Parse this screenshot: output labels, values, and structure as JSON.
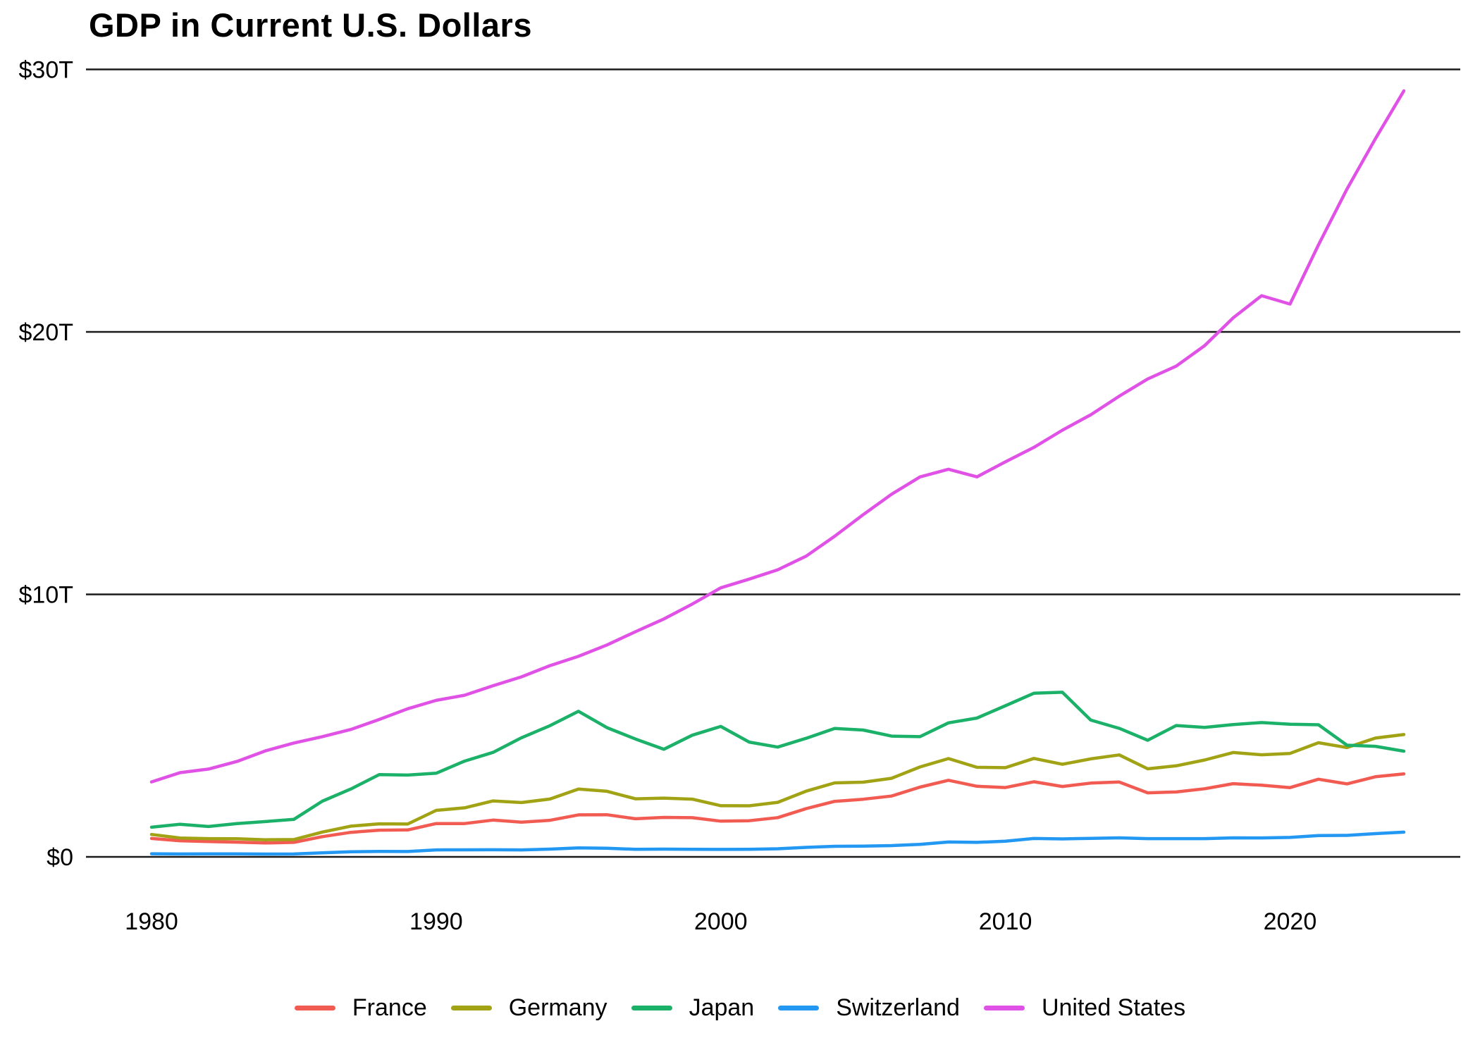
{
  "chart_data": {
    "type": "line",
    "title": "GDP in Current U.S. Dollars",
    "y_unit": "trillions of current U.S. dollars",
    "ylim": [
      0,
      30
    ],
    "xlim": [
      1980,
      2024
    ],
    "grid": "horizontal-major-only",
    "legend_position": "bottom-center",
    "axis_color": "#1a1a1a",
    "x": [
      1980,
      1981,
      1982,
      1983,
      1984,
      1985,
      1986,
      1987,
      1988,
      1989,
      1990,
      1991,
      1992,
      1993,
      1994,
      1995,
      1996,
      1997,
      1998,
      1999,
      2000,
      2001,
      2002,
      2003,
      2004,
      2005,
      2006,
      2007,
      2008,
      2009,
      2010,
      2011,
      2012,
      2013,
      2014,
      2015,
      2016,
      2017,
      2018,
      2019,
      2020,
      2021,
      2022,
      2023,
      2024
    ],
    "x_ticks": [
      {
        "value": 1980,
        "label": "1980"
      },
      {
        "value": 1990,
        "label": "1990"
      },
      {
        "value": 2000,
        "label": "2000"
      },
      {
        "value": 2010,
        "label": "2010"
      },
      {
        "value": 2020,
        "label": "2020"
      }
    ],
    "y_ticks": [
      {
        "value": 0,
        "label": "$0"
      },
      {
        "value": 10,
        "label": "$10T"
      },
      {
        "value": 20,
        "label": "$20T"
      },
      {
        "value": 30,
        "label": "$30T"
      }
    ],
    "series": [
      {
        "name": "France",
        "color": "#F25B52",
        "values": [
          0.701,
          0.615,
          0.584,
          0.561,
          0.53,
          0.553,
          0.771,
          0.934,
          1.018,
          1.025,
          1.269,
          1.269,
          1.401,
          1.322,
          1.393,
          1.601,
          1.605,
          1.452,
          1.503,
          1.493,
          1.362,
          1.377,
          1.494,
          1.84,
          2.115,
          2.196,
          2.318,
          2.657,
          2.918,
          2.69,
          2.642,
          2.861,
          2.683,
          2.811,
          2.852,
          2.439,
          2.472,
          2.595,
          2.79,
          2.729,
          2.639,
          2.959,
          2.78,
          3.052,
          3.162
        ]
      },
      {
        "name": "Germany",
        "color": "#A1A315",
        "values": [
          0.854,
          0.72,
          0.694,
          0.69,
          0.652,
          0.661,
          0.944,
          1.171,
          1.26,
          1.252,
          1.772,
          1.869,
          2.131,
          2.071,
          2.205,
          2.585,
          2.498,
          2.213,
          2.239,
          2.199,
          1.948,
          1.945,
          2.079,
          2.506,
          2.819,
          2.846,
          2.994,
          3.425,
          3.745,
          3.411,
          3.399,
          3.749,
          3.527,
          3.733,
          3.884,
          3.357,
          3.469,
          3.69,
          3.975,
          3.889,
          3.94,
          4.348,
          4.163,
          4.526,
          4.66
        ]
      },
      {
        "name": "Japan",
        "color": "#1BB169",
        "values": [
          1.129,
          1.243,
          1.158,
          1.27,
          1.345,
          1.427,
          2.121,
          2.584,
          3.134,
          3.117,
          3.186,
          3.648,
          3.98,
          4.539,
          4.998,
          5.546,
          4.923,
          4.492,
          4.098,
          4.636,
          4.968,
          4.374,
          4.182,
          4.519,
          4.893,
          4.831,
          4.601,
          4.579,
          5.106,
          5.289,
          5.759,
          6.233,
          6.272,
          5.212,
          4.897,
          4.444,
          5.004,
          4.931,
          5.041,
          5.118,
          5.055,
          5.034,
          4.256,
          4.213,
          4.026
        ]
      },
      {
        "name": "Switzerland",
        "color": "#2398F3",
        "values": [
          0.118,
          0.11,
          0.113,
          0.112,
          0.107,
          0.109,
          0.154,
          0.193,
          0.208,
          0.203,
          0.265,
          0.268,
          0.272,
          0.266,
          0.295,
          0.342,
          0.33,
          0.287,
          0.294,
          0.289,
          0.284,
          0.286,
          0.31,
          0.362,
          0.403,
          0.412,
          0.43,
          0.479,
          0.567,
          0.554,
          0.598,
          0.7,
          0.684,
          0.707,
          0.726,
          0.694,
          0.694,
          0.695,
          0.726,
          0.722,
          0.742,
          0.813,
          0.818,
          0.885,
          0.942
        ]
      },
      {
        "name": "United States",
        "color": "#E052E6",
        "values": [
          2.857,
          3.207,
          3.344,
          3.634,
          4.038,
          4.339,
          4.58,
          4.855,
          5.236,
          5.642,
          5.963,
          6.158,
          6.52,
          6.859,
          7.287,
          7.64,
          8.073,
          8.578,
          9.063,
          9.631,
          10.251,
          10.582,
          10.936,
          11.458,
          12.214,
          13.037,
          13.815,
          14.474,
          14.769,
          14.478,
          15.049,
          15.6,
          16.254,
          16.843,
          17.551,
          18.206,
          18.695,
          19.477,
          20.533,
          21.381,
          21.06,
          23.315,
          25.44,
          27.361,
          29.185
        ]
      }
    ]
  }
}
